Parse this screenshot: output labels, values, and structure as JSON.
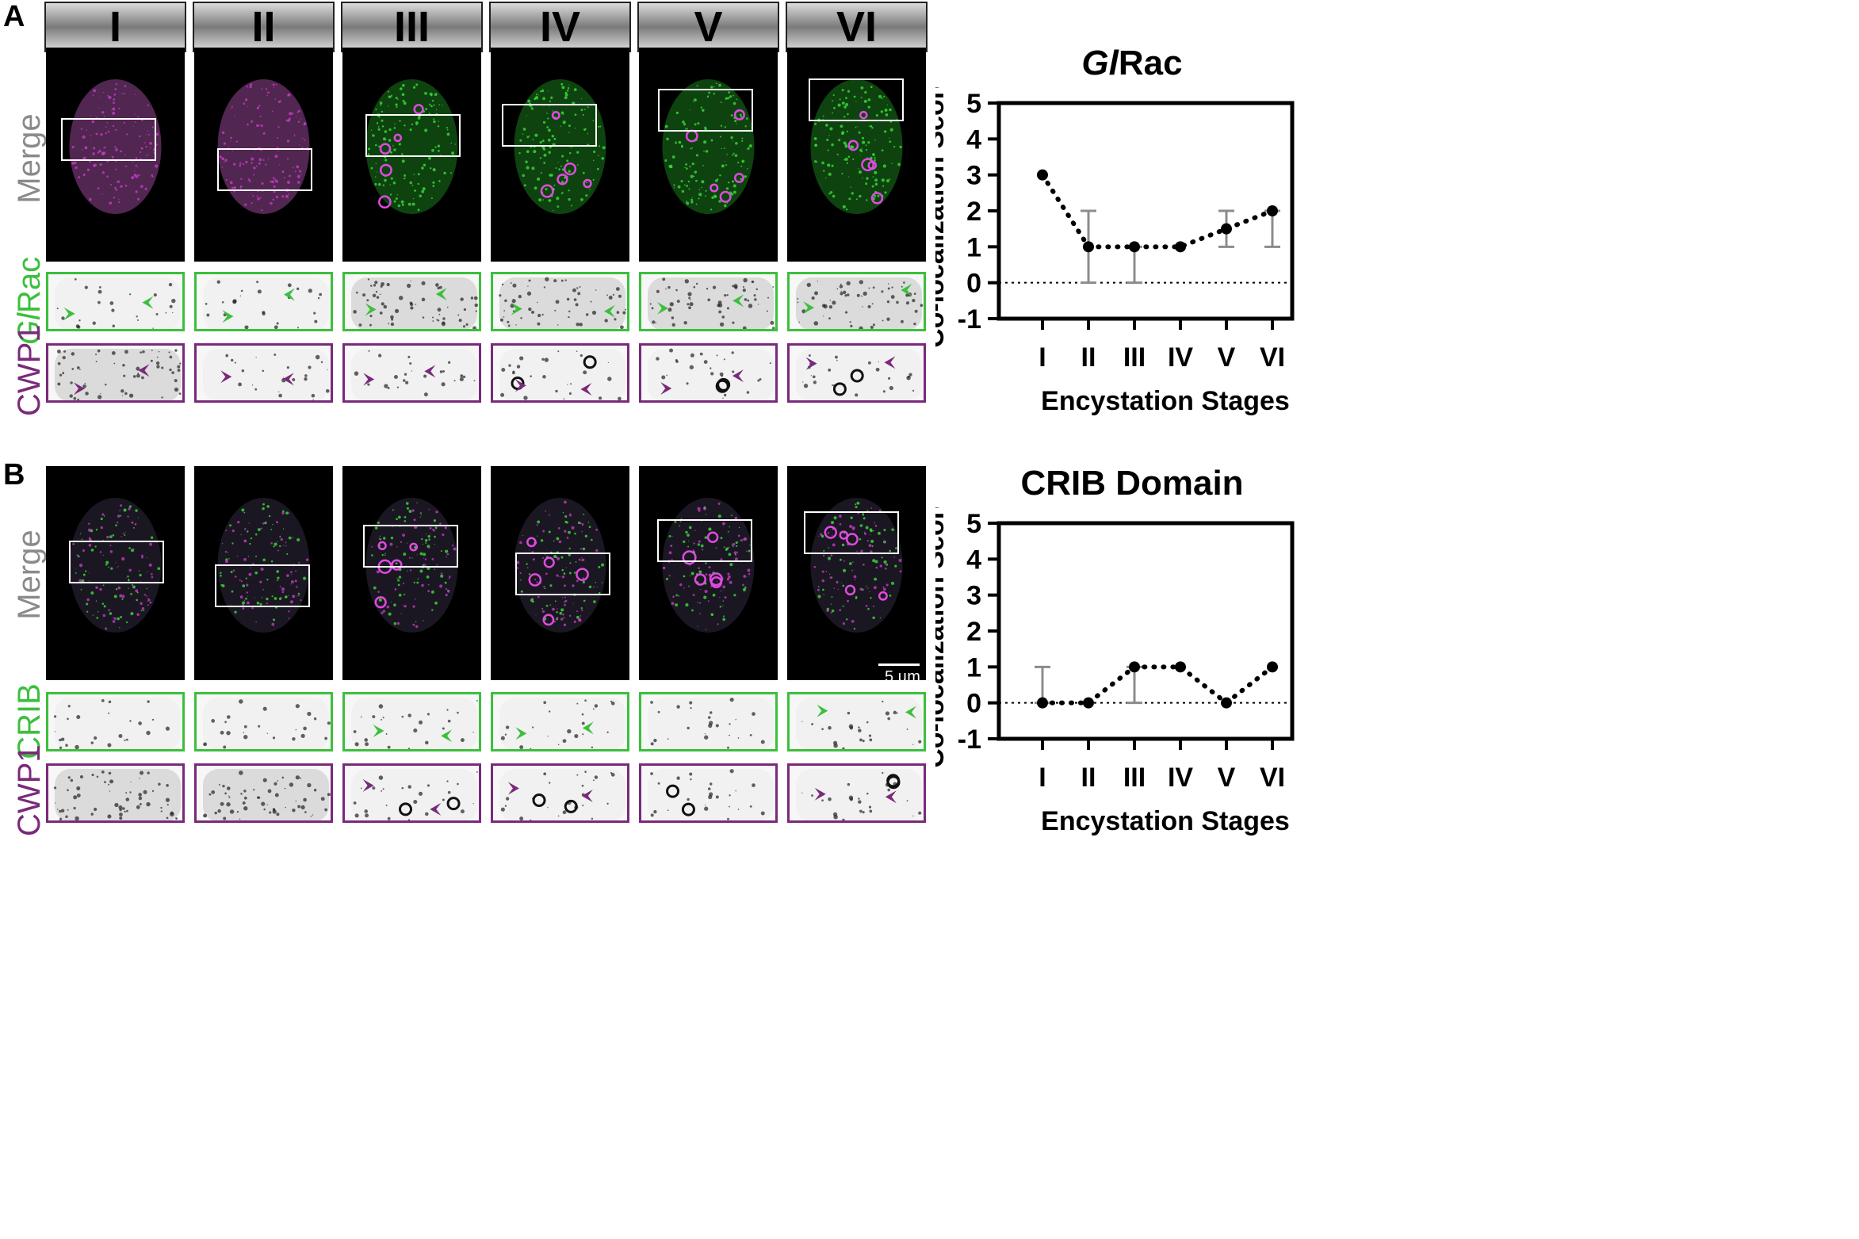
{
  "panels": {
    "A": {
      "letter": "A",
      "merge_label": "Merge",
      "zoom_label_1": "GlRac",
      "zoom_label_1_italic": "Gl",
      "zoom_label_1_rest": "Rac",
      "zoom_label_2": "CWP1"
    },
    "B": {
      "letter": "B",
      "merge_label": "Merge",
      "zoom_label_1": "CRIB",
      "zoom_label_2": "CWP1"
    }
  },
  "stages": [
    "I",
    "II",
    "III",
    "IV",
    "V",
    "VI"
  ],
  "scale_bar": "5 µm",
  "colors": {
    "green": "#3dbf3d",
    "purple": "#7a2a7a",
    "magenta": "#d23cd2",
    "gray_label": "#8a8a8a",
    "error_bar": "#8c8c8c"
  },
  "chart_data": [
    {
      "type": "line",
      "title_italic": "Gl",
      "title_rest": "Rac",
      "categories": [
        "I",
        "II",
        "III",
        "IV",
        "V",
        "VI"
      ],
      "values": [
        3,
        1,
        1,
        1,
        1.5,
        2
      ],
      "error_low": [
        3,
        0,
        0,
        1,
        1,
        1
      ],
      "error_high": [
        3,
        2,
        1,
        1,
        2,
        2
      ],
      "xlabel": "Encystation Stages",
      "ylabel": "Co-localization Score",
      "ylim": [
        -1,
        5
      ],
      "yticks": [
        "5",
        "4",
        "3",
        "2",
        "1",
        "0",
        "-1"
      ],
      "reference_line": 0
    },
    {
      "type": "line",
      "title": "CRIB Domain",
      "categories": [
        "I",
        "II",
        "III",
        "IV",
        "V",
        "VI"
      ],
      "values": [
        0,
        0,
        1,
        1,
        0,
        1
      ],
      "error_low": [
        0,
        0,
        0,
        1,
        0,
        1
      ],
      "error_high": [
        1,
        0,
        1,
        1,
        0,
        1
      ],
      "xlabel": "Encystation Stages",
      "ylabel": "Co-localization Score",
      "ylim": [
        -1,
        5
      ],
      "yticks": [
        "5",
        "4",
        "3",
        "2",
        "1",
        "0",
        "-1"
      ],
      "reference_line": 0
    }
  ]
}
